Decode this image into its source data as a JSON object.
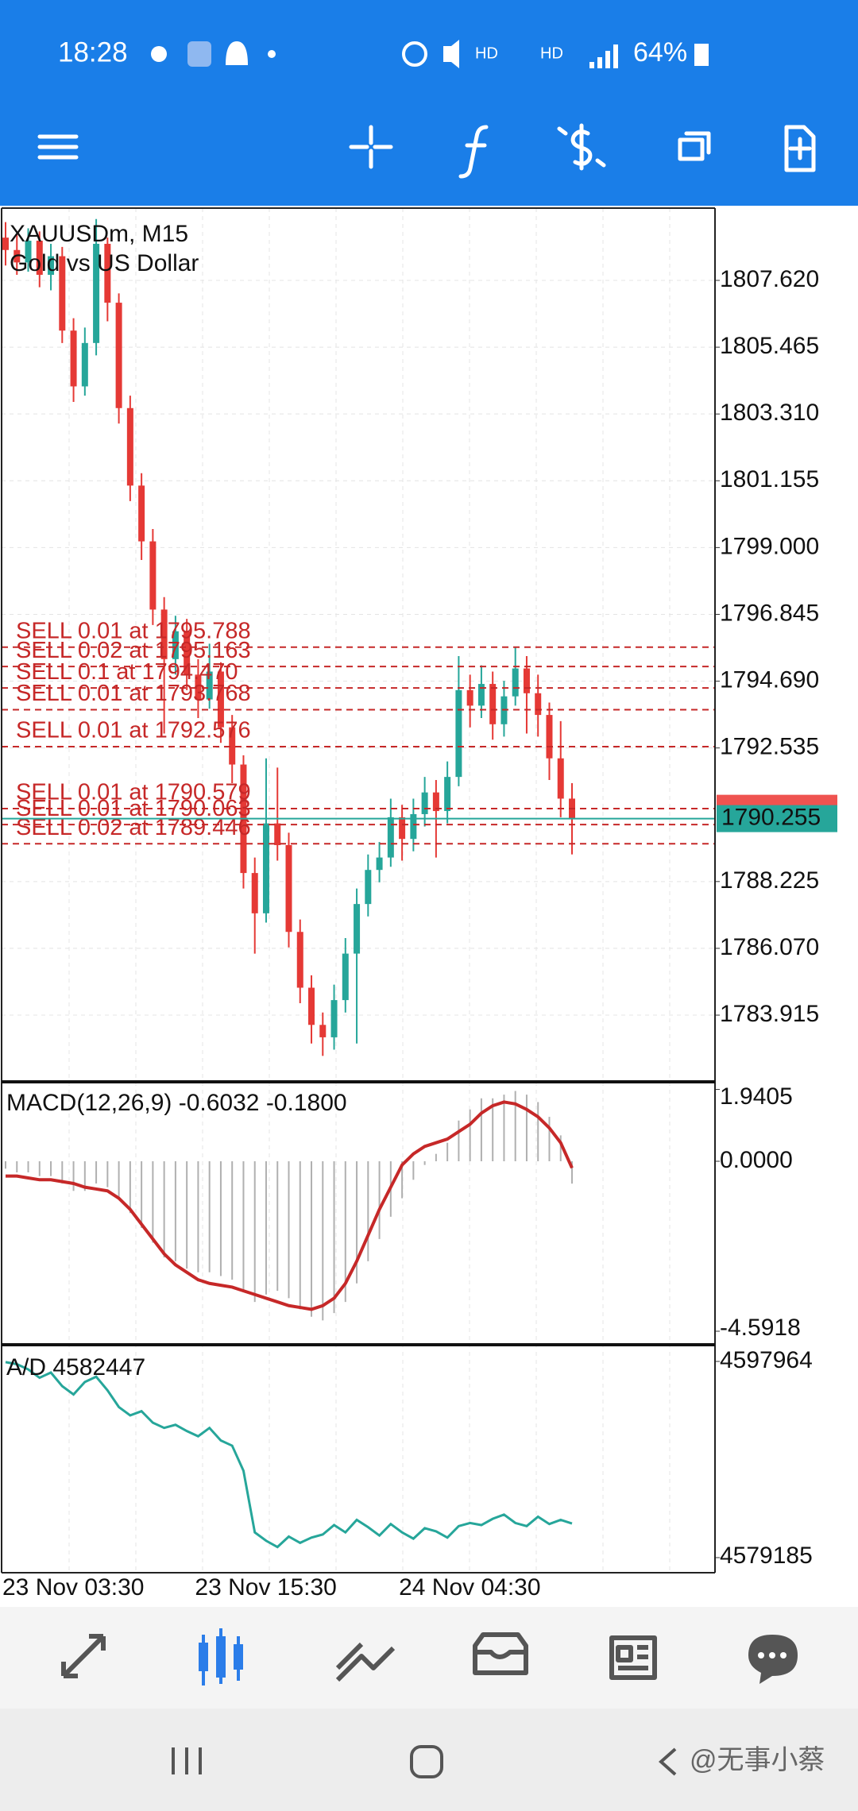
{
  "status_bar": {
    "time": "18:28",
    "battery": "64%"
  },
  "chart_data": [
    {
      "type": "candlestick",
      "title": "XAUUSDm, M15",
      "subtitle": "Gold vs US Dollar",
      "categories": [
        "23 Nov 03:30",
        null,
        null,
        null,
        null,
        null,
        null,
        null,
        null,
        null,
        null,
        null,
        null,
        null,
        null,
        null,
        null,
        "23 Nov 15:30",
        null,
        null,
        null,
        null,
        null,
        null,
        null,
        null,
        null,
        null,
        null,
        null,
        null,
        null,
        null,
        null,
        null,
        "24 Nov 04:30",
        null,
        null,
        null,
        null,
        null,
        null,
        null,
        null,
        null,
        null,
        null,
        null,
        null,
        null,
        null
      ],
      "ohlc": [
        [
          1809.0,
          1809.5,
          1808.1,
          1808.6
        ],
        [
          1808.6,
          1809.1,
          1807.8,
          1808.2
        ],
        [
          1808.2,
          1809.3,
          1807.9,
          1808.9
        ],
        [
          1808.9,
          1809.2,
          1807.4,
          1807.8
        ],
        [
          1807.8,
          1808.8,
          1807.3,
          1808.4
        ],
        [
          1808.4,
          1808.7,
          1805.6,
          1806.0
        ],
        [
          1806.0,
          1806.4,
          1803.7,
          1804.2
        ],
        [
          1804.2,
          1806.1,
          1803.9,
          1805.6
        ],
        [
          1805.6,
          1809.6,
          1805.2,
          1808.8
        ],
        [
          1808.8,
          1809.0,
          1806.3,
          1806.9
        ],
        [
          1806.9,
          1807.2,
          1803.0,
          1803.5
        ],
        [
          1803.5,
          1803.9,
          1800.5,
          1801.0
        ],
        [
          1801.0,
          1801.4,
          1798.6,
          1799.2
        ],
        [
          1799.2,
          1799.6,
          1796.5,
          1797.0
        ],
        [
          1797.0,
          1797.4,
          1793.0,
          1795.4
        ],
        [
          1795.4,
          1796.8,
          1794.9,
          1796.3
        ],
        [
          1796.3,
          1796.7,
          1794.4,
          1794.9
        ],
        [
          1794.9,
          1795.4,
          1793.5,
          1794.1
        ],
        [
          1794.1,
          1795.9,
          1793.8,
          1795.0
        ],
        [
          1795.0,
          1795.3,
          1792.7,
          1793.2
        ],
        [
          1793.2,
          1793.6,
          1791.4,
          1792.0
        ],
        [
          1792.0,
          1792.3,
          1788.0,
          1788.5
        ],
        [
          1788.5,
          1789.0,
          1785.9,
          1787.2
        ],
        [
          1787.2,
          1792.2,
          1786.9,
          1790.1
        ],
        [
          1790.1,
          1791.9,
          1788.9,
          1789.4
        ],
        [
          1789.4,
          1789.8,
          1786.1,
          1786.6
        ],
        [
          1786.6,
          1787.0,
          1784.3,
          1784.8
        ],
        [
          1784.8,
          1785.2,
          1783.0,
          1783.6
        ],
        [
          1783.6,
          1784.0,
          1782.6,
          1783.2
        ],
        [
          1783.2,
          1784.9,
          1782.8,
          1784.4
        ],
        [
          1784.4,
          1786.4,
          1784.0,
          1785.9
        ],
        [
          1785.9,
          1788.0,
          1783.0,
          1787.5
        ],
        [
          1787.5,
          1789.1,
          1787.1,
          1788.6
        ],
        [
          1788.6,
          1789.5,
          1788.2,
          1789.0
        ],
        [
          1789.0,
          1790.9,
          1788.7,
          1790.3
        ],
        [
          1790.3,
          1790.7,
          1788.9,
          1789.6
        ],
        [
          1789.6,
          1790.9,
          1789.2,
          1790.4
        ],
        [
          1790.4,
          1791.6,
          1790.0,
          1791.1
        ],
        [
          1791.1,
          1791.5,
          1789.0,
          1790.5
        ],
        [
          1790.5,
          1792.1,
          1790.1,
          1791.6
        ],
        [
          1791.6,
          1795.5,
          1791.3,
          1794.4
        ],
        [
          1794.4,
          1794.9,
          1793.2,
          1793.9
        ],
        [
          1793.9,
          1795.2,
          1793.5,
          1794.6
        ],
        [
          1794.6,
          1795.0,
          1792.8,
          1793.3
        ],
        [
          1793.3,
          1794.7,
          1792.9,
          1794.2
        ],
        [
          1794.2,
          1795.8,
          1793.9,
          1795.1
        ],
        [
          1795.1,
          1795.5,
          1793.0,
          1794.3
        ],
        [
          1794.3,
          1794.9,
          1792.9,
          1793.6
        ],
        [
          1793.6,
          1794.0,
          1791.5,
          1792.2
        ],
        [
          1792.2,
          1793.4,
          1790.3,
          1790.9
        ],
        [
          1790.9,
          1791.4,
          1789.1,
          1790.255
        ]
      ],
      "up_color": "#26a69a",
      "down_color": "#e53935",
      "ylim": [
        1781.763,
        1809.952
      ],
      "yticks": [
        {
          "value": 1807.62,
          "label": "1807.620"
        },
        {
          "value": 1805.465,
          "label": "1805.465"
        },
        {
          "value": 1803.31,
          "label": "1803.310"
        },
        {
          "value": 1801.155,
          "label": "1801.155"
        },
        {
          "value": 1799.0,
          "label": "1799.000"
        },
        {
          "value": 1796.845,
          "label": "1796.845"
        },
        {
          "value": 1794.69,
          "label": "1794.690"
        },
        {
          "value": 1792.535,
          "label": "1792.535"
        },
        {
          "value": 1788.225,
          "label": "1788.225"
        },
        {
          "value": 1786.07,
          "label": "1786.070"
        },
        {
          "value": 1783.915,
          "label": "1783.915"
        }
      ],
      "grid": true,
      "orders": [
        {
          "text": "SELL 0.01 at 1795.788",
          "price": 1795.788
        },
        {
          "text": "SELL 0.02 at 1795.163",
          "price": 1795.163
        },
        {
          "text": "SELL 0.1 at 1794.470",
          "price": 1794.47
        },
        {
          "text": "SELL 0.01 at 1793.768",
          "price": 1793.768
        },
        {
          "text": "SELL 0.01 at 1792.576",
          "price": 1792.576
        },
        {
          "text": "SELL 0.01 at 1790.579",
          "price": 1790.579
        },
        {
          "text": "SELL 0.01 at 1790.063",
          "price": 1790.063
        },
        {
          "text": "SELL 0.02 at 1789.446",
          "price": 1789.446
        }
      ],
      "order_color": "#c62828",
      "bid": 1790.255,
      "bid_color": "#26a69a",
      "ask_color": "#ef5350"
    },
    {
      "type": "macd",
      "title": "MACD(12,26,9) -0.6032 -0.1800",
      "histogram": [
        -0.2,
        -0.3,
        -0.3,
        -0.4,
        -0.4,
        -0.6,
        -0.8,
        -0.8,
        -0.6,
        -0.7,
        -1.0,
        -1.4,
        -1.8,
        -2.2,
        -2.6,
        -2.7,
        -2.9,
        -3.0,
        -3.0,
        -3.1,
        -3.2,
        -3.5,
        -3.8,
        -3.6,
        -3.5,
        -3.7,
        -4.0,
        -4.2,
        -4.3,
        -4.1,
        -3.8,
        -3.3,
        -2.7,
        -2.1,
        -1.5,
        -1.0,
        -0.5,
        -0.1,
        0.2,
        0.5,
        1.1,
        1.4,
        1.7,
        1.7,
        1.8,
        1.9,
        1.8,
        1.6,
        1.2,
        0.7,
        -0.6032
      ],
      "signal": [
        -0.4,
        -0.4,
        -0.45,
        -0.5,
        -0.5,
        -0.55,
        -0.6,
        -0.7,
        -0.75,
        -0.8,
        -1.0,
        -1.3,
        -1.7,
        -2.1,
        -2.5,
        -2.8,
        -3.0,
        -3.2,
        -3.3,
        -3.35,
        -3.4,
        -3.5,
        -3.6,
        -3.7,
        -3.8,
        -3.9,
        -3.95,
        -4.0,
        -3.9,
        -3.7,
        -3.3,
        -2.7,
        -2.0,
        -1.3,
        -0.7,
        -0.1,
        0.2,
        0.4,
        0.5,
        0.6,
        0.8,
        1.0,
        1.3,
        1.5,
        1.6,
        1.55,
        1.4,
        1.2,
        0.9,
        0.5,
        -0.18
      ],
      "histogram_color": "#b0b0b0",
      "signal_color": "#c62828",
      "ylim": [
        -4.957,
        2.146
      ],
      "yticks": [
        1.9405,
        {
          "value": 0,
          "label": "0.0000"
        },
        -4.5918
      ]
    },
    {
      "type": "line",
      "title": "A/D 4582447",
      "values": [
        4597900,
        4597700,
        4597200,
        4596400,
        4596900,
        4595600,
        4594800,
        4596000,
        4596500,
        4595200,
        4593600,
        4592800,
        4593200,
        4592100,
        4591600,
        4591900,
        4591300,
        4590800,
        4591600,
        4590400,
        4589900,
        4587500,
        4581600,
        4580800,
        4580200,
        4581200,
        4580600,
        4581100,
        4581400,
        4582300,
        4581600,
        4582800,
        4582100,
        4581300,
        4582400,
        4581600,
        4581000,
        4582000,
        4581700,
        4581100,
        4582200,
        4582500,
        4582300,
        4582900,
        4583300,
        4582500,
        4582200,
        4583100,
        4582400,
        4582800,
        4582447
      ],
      "color": "#26a69a",
      "ylim": [
        4577740,
        4599561
      ],
      "yticks": [
        4597964,
        4579185
      ]
    }
  ],
  "watermark": "@无事小蔡"
}
